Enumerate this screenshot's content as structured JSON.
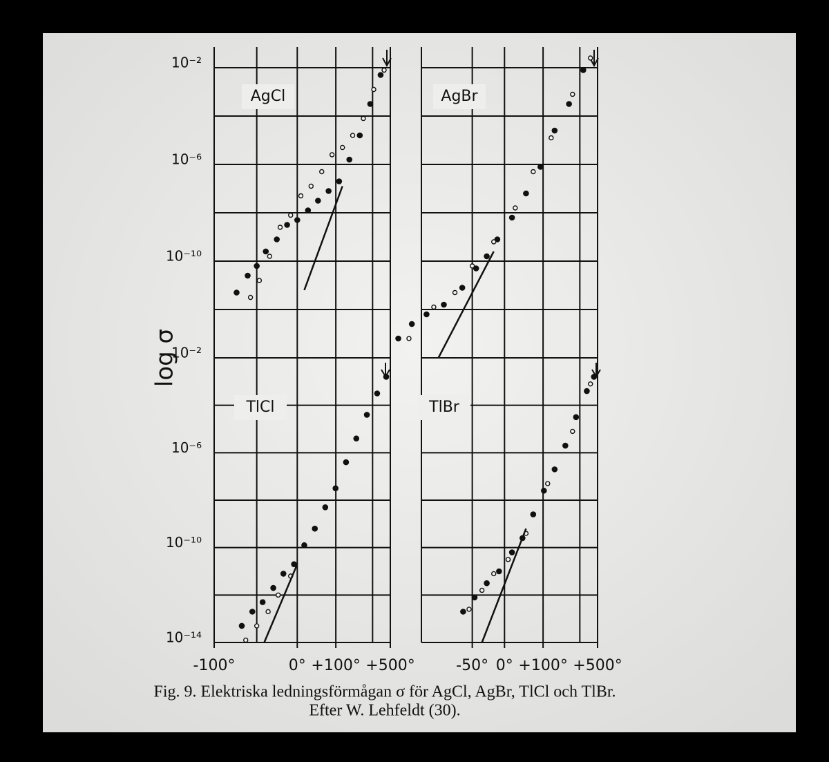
{
  "ylabel": "log σ",
  "caption": [
    "Fig. 9. Elektriska ledningsförmågan σ för AgCl, AgBr, TlCl och TlBr.",
    "Efter W. Lehfeldt (30)."
  ],
  "chart_data": [
    {
      "type": "scatter",
      "title": "AgCl",
      "xscale": "reciprocal",
      "xlim": [
        -100,
        500
      ],
      "ylim": [
        -14,
        -2
      ],
      "yticks": [
        {
          "value": -2,
          "label": "10⁻²"
        },
        {
          "value": -6,
          "label": "10⁻⁶"
        },
        {
          "value": -10,
          "label": "10⁻¹⁰"
        }
      ],
      "xgrid": [
        -100,
        -60,
        0,
        100,
        300,
        500
      ],
      "ygrid": [
        -14,
        -12,
        -10,
        -8,
        -6,
        -4,
        -2
      ],
      "series": [
        {
          "marker": "filled",
          "color": "#111111",
          "x": [
            -81,
            -70,
            -60,
            -49,
            -34,
            -18,
            0,
            22,
            46,
            76,
            112,
            155,
            210,
            281,
            376
          ],
          "values": [
            -11.3,
            -10.6,
            -10.2,
            -9.6,
            -9.1,
            -8.5,
            -8.3,
            -7.9,
            -7.5,
            -7.1,
            -6.7,
            -5.8,
            -4.8,
            -3.5,
            -2.3
          ]
        },
        {
          "marker": "open",
          "color": "#111111",
          "x": [
            -67,
            -57,
            -44,
            -29,
            -12,
            7,
            29,
            56,
            87,
            125,
            171,
            232,
            310,
            416
          ],
          "values": [
            -11.5,
            -10.8,
            -9.8,
            -8.6,
            -8.1,
            -7.3,
            -6.9,
            -6.3,
            -5.6,
            -5.3,
            -4.8,
            -4.1,
            -2.9,
            -2.1
          ]
        },
        {
          "marker": "line",
          "color": "#111111",
          "x": [
            14,
            125
          ],
          "values": [
            -11.2,
            -6.9
          ]
        }
      ]
    },
    {
      "type": "scatter",
      "title": "AgBr",
      "xscale": "reciprocal",
      "xlim": [
        -100,
        500
      ],
      "ylim": [
        -14,
        -2
      ],
      "xgrid": [
        -100,
        -50,
        0,
        100,
        300,
        500
      ],
      "ygrid": [
        -14,
        -12,
        -10,
        -8,
        -6,
        -4,
        -2
      ],
      "series": [
        {
          "marker": "filled",
          "color": "#111111",
          "x": [
            -116,
            -107,
            -96,
            -81,
            -62,
            -45,
            -30,
            -13,
            15,
            48,
            91,
            146,
            222,
            330
          ],
          "values": [
            -13.2,
            -12.6,
            -12.2,
            -11.8,
            -11.1,
            -10.3,
            -9.8,
            -9.1,
            -8.2,
            -7.2,
            -6.1,
            -4.6,
            -3.5,
            -2.1
          ]
        },
        {
          "marker": "open",
          "color": "#111111",
          "x": [
            -109,
            -90,
            -70,
            -50,
            -19,
            22,
            68,
            131,
            245,
            405
          ],
          "values": [
            -13.2,
            -11.9,
            -11.3,
            -10.2,
            -9.2,
            -7.8,
            -6.3,
            -4.9,
            -3.1,
            -1.6
          ]
        },
        {
          "marker": "line",
          "color": "#111111",
          "x": [
            -86,
            -19
          ],
          "values": [
            -14,
            -9.6
          ]
        }
      ]
    },
    {
      "type": "scatter",
      "title": "TlCl",
      "xscale": "reciprocal",
      "xlim": [
        -100,
        500
      ],
      "ylim": [
        -14,
        -2
      ],
      "yticks": [
        {
          "value": -2,
          "label": "10⁻²"
        },
        {
          "value": -6,
          "label": "10⁻⁶"
        },
        {
          "value": -10,
          "label": "10⁻¹⁰"
        },
        {
          "value": -14,
          "label": "10⁻¹⁴"
        }
      ],
      "xticks": [
        {
          "value": -100,
          "label": "-100°"
        },
        {
          "value": 0,
          "label": "0°"
        },
        {
          "value": 100,
          "label": "+100°"
        },
        {
          "value": 500,
          "label": "+500°"
        }
      ],
      "xgrid": [
        -100,
        -60,
        0,
        100,
        300,
        500
      ],
      "ygrid": [
        -14,
        -12,
        -10,
        -8,
        -6,
        -4,
        -2
      ],
      "series": [
        {
          "marker": "filled",
          "color": "#111111",
          "x": [
            -76,
            -65,
            -53,
            -39,
            -24,
            -6,
            14,
            38,
            66,
            99,
            140,
            190,
            256,
            341,
            442
          ],
          "values": [
            -13.3,
            -12.7,
            -12.3,
            -11.7,
            -11.1,
            -10.7,
            -9.9,
            -9.2,
            -8.3,
            -7.5,
            -6.4,
            -5.4,
            -4.4,
            -3.5,
            -2.8
          ]
        },
        {
          "marker": "open",
          "color": "#111111",
          "x": [
            -72,
            -60,
            -46,
            -32,
            -12
          ],
          "values": [
            -13.9,
            -13.3,
            -12.7,
            -12.0,
            -11.2
          ]
        },
        {
          "marker": "line",
          "color": "#111111",
          "x": [
            -51,
            0
          ],
          "values": [
            -14,
            -10.7
          ]
        }
      ]
    },
    {
      "type": "scatter",
      "title": "TlBr",
      "xscale": "reciprocal",
      "xlim": [
        -100,
        500
      ],
      "ylim": [
        -14,
        -2
      ],
      "xticks": [
        {
          "value": -50,
          "label": "-50°"
        },
        {
          "value": 0,
          "label": "0°"
        },
        {
          "value": 100,
          "label": "+100°"
        },
        {
          "value": 500,
          "label": "+500°"
        }
      ],
      "xgrid": [
        -100,
        -50,
        0,
        100,
        300,
        500
      ],
      "ygrid": [
        -14,
        -12,
        -10,
        -8,
        -6,
        -4,
        -2
      ],
      "series": [
        {
          "marker": "filled",
          "color": "#111111",
          "x": [
            -61,
            -47,
            -30,
            -10,
            15,
            39,
            68,
            103,
            146,
            200,
            270,
            365,
            449
          ],
          "values": [
            -12.7,
            -12.1,
            -11.5,
            -11.0,
            -10.2,
            -9.6,
            -8.6,
            -7.6,
            -6.7,
            -5.7,
            -4.5,
            -3.4,
            -2.8
          ]
        },
        {
          "marker": "open",
          "color": "#111111",
          "x": [
            -54,
            -37,
            -19,
            7,
            48,
            117,
            245,
            405
          ],
          "values": [
            -12.6,
            -11.8,
            -11.1,
            -10.5,
            -9.4,
            -7.3,
            -5.1,
            -3.1
          ]
        },
        {
          "marker": "line",
          "color": "#111111",
          "x": [
            -37,
            48
          ],
          "values": [
            -14,
            -9.2
          ]
        }
      ]
    }
  ]
}
